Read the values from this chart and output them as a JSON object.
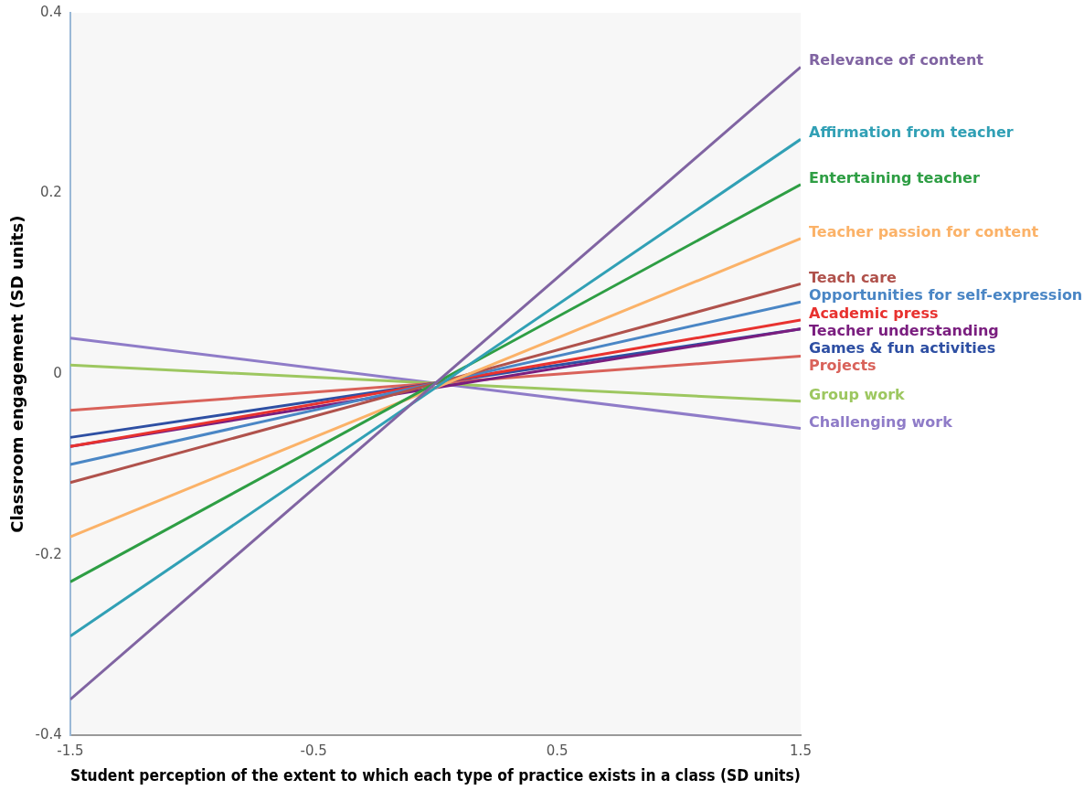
{
  "chart_data": {
    "type": "line",
    "xlabel": "Student perception of the extent to which each type of practice exists in a class (SD units)",
    "ylabel": "Classroom engagement (SD units)",
    "x": [
      -1.5,
      1.5
    ],
    "xlim": [
      -1.5,
      1.5
    ],
    "ylim": [
      -0.4,
      0.4
    ],
    "xticks": [
      -1.5,
      -0.5,
      0.5,
      1.5
    ],
    "yticks": [
      -0.4,
      -0.2,
      0,
      0.2,
      0.4
    ],
    "marker": "none",
    "line_style": "solid",
    "series": [
      {
        "name": "Relevance of content",
        "color": "#8064a2",
        "values": [
          -0.36,
          0.34
        ]
      },
      {
        "name": "Affirmation from teacher",
        "color": "#31a0b5",
        "values": [
          -0.29,
          0.26
        ]
      },
      {
        "name": "Entertaining teacher",
        "color": "#2e9e44",
        "values": [
          -0.23,
          0.21
        ]
      },
      {
        "name": "Teacher passion for content",
        "color": "#fbb268",
        "values": [
          -0.18,
          0.15
        ]
      },
      {
        "name": "Teach care",
        "color": "#b0524c",
        "values": [
          -0.12,
          0.1
        ]
      },
      {
        "name": "Opportunities for self-expression",
        "color": "#4a86c5",
        "values": [
          -0.1,
          0.08
        ]
      },
      {
        "name": "Academic press",
        "color": "#e8322f",
        "values": [
          -0.08,
          0.06
        ]
      },
      {
        "name": "Teacher understanding",
        "color": "#7a1e7f",
        "values": [
          -0.08,
          0.05
        ]
      },
      {
        "name": "Games & fun activities",
        "color": "#2e4fa3",
        "values": [
          -0.07,
          0.05
        ]
      },
      {
        "name": "Projects",
        "color": "#d9625a",
        "values": [
          -0.04,
          0.02
        ]
      },
      {
        "name": "Group work",
        "color": "#9dc760",
        "values": [
          0.01,
          -0.03
        ]
      },
      {
        "name": "Challenging work",
        "color": "#8f7cc8",
        "values": [
          0.04,
          -0.06
        ]
      }
    ]
  }
}
